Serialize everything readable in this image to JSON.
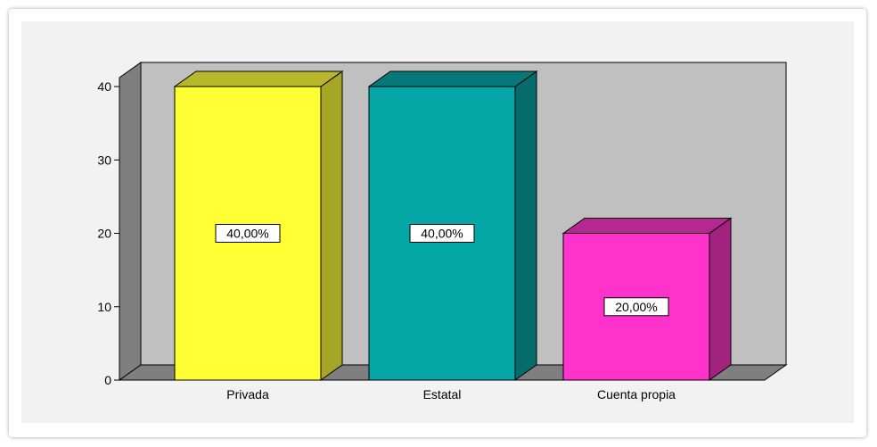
{
  "chart_data": {
    "type": "bar",
    "categories": [
      "Privada",
      "Estatal",
      "Cuenta propia"
    ],
    "values": [
      40,
      40,
      20
    ],
    "data_labels": [
      "40,00%",
      "40,00%",
      "20,00%"
    ],
    "yticks": [
      0,
      10,
      20,
      30,
      40
    ],
    "ylim": [
      0,
      40
    ],
    "grid": false,
    "legend": "none",
    "three_d": true,
    "bar_colors": [
      "#ffff33",
      "#05a6a6",
      "#ff33cc"
    ],
    "bar_side_colors": [
      "#a6a626",
      "#066b6b",
      "#a3227f"
    ],
    "bar_top_colors": [
      "#b8b82c",
      "#077878",
      "#b4288f"
    ],
    "colors": {
      "plot_background": "#c0c0c0",
      "left_wall": "#7f7f7f",
      "floor": "#7f7f7f",
      "chart_background": "#f2f2f2",
      "outline": "#000000"
    }
  }
}
